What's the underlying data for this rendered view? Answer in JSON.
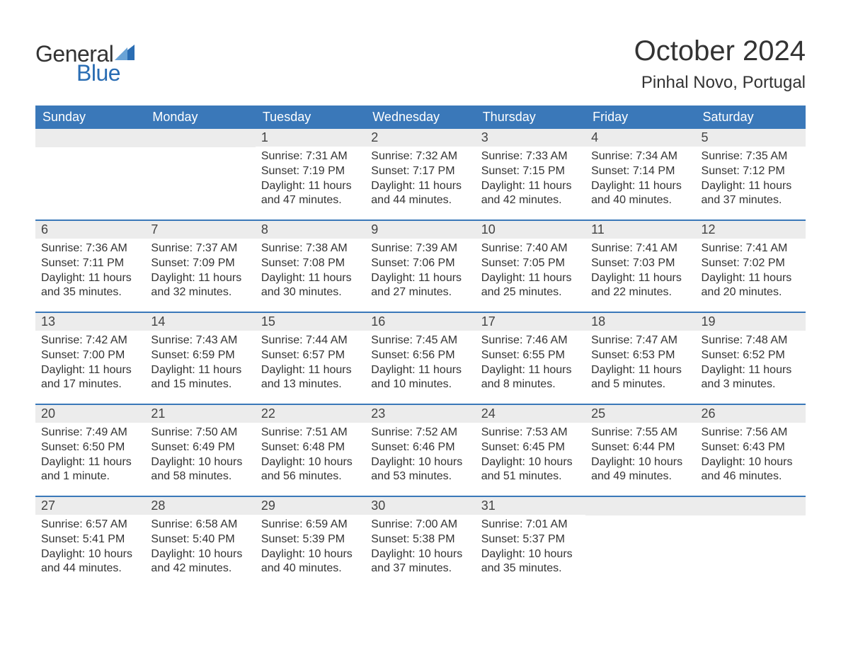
{
  "brand": {
    "word1": "General",
    "word2": "Blue",
    "accent_color": "#2a6db3"
  },
  "header": {
    "title": "October 2024",
    "location": "Pinhal Novo, Portugal"
  },
  "colors": {
    "header_bg": "#3a78b9",
    "header_text": "#ffffff",
    "daynum_bg": "#ececec",
    "text": "#333333",
    "rule": "#3a78b9"
  },
  "weekdays": [
    "Sunday",
    "Monday",
    "Tuesday",
    "Wednesday",
    "Thursday",
    "Friday",
    "Saturday"
  ],
  "weeks": [
    [
      null,
      null,
      {
        "n": "1",
        "sunrise": "Sunrise: 7:31 AM",
        "sunset": "Sunset: 7:19 PM",
        "dl": "Daylight: 11 hours and 47 minutes."
      },
      {
        "n": "2",
        "sunrise": "Sunrise: 7:32 AM",
        "sunset": "Sunset: 7:17 PM",
        "dl": "Daylight: 11 hours and 44 minutes."
      },
      {
        "n": "3",
        "sunrise": "Sunrise: 7:33 AM",
        "sunset": "Sunset: 7:15 PM",
        "dl": "Daylight: 11 hours and 42 minutes."
      },
      {
        "n": "4",
        "sunrise": "Sunrise: 7:34 AM",
        "sunset": "Sunset: 7:14 PM",
        "dl": "Daylight: 11 hours and 40 minutes."
      },
      {
        "n": "5",
        "sunrise": "Sunrise: 7:35 AM",
        "sunset": "Sunset: 7:12 PM",
        "dl": "Daylight: 11 hours and 37 minutes."
      }
    ],
    [
      {
        "n": "6",
        "sunrise": "Sunrise: 7:36 AM",
        "sunset": "Sunset: 7:11 PM",
        "dl": "Daylight: 11 hours and 35 minutes."
      },
      {
        "n": "7",
        "sunrise": "Sunrise: 7:37 AM",
        "sunset": "Sunset: 7:09 PM",
        "dl": "Daylight: 11 hours and 32 minutes."
      },
      {
        "n": "8",
        "sunrise": "Sunrise: 7:38 AM",
        "sunset": "Sunset: 7:08 PM",
        "dl": "Daylight: 11 hours and 30 minutes."
      },
      {
        "n": "9",
        "sunrise": "Sunrise: 7:39 AM",
        "sunset": "Sunset: 7:06 PM",
        "dl": "Daylight: 11 hours and 27 minutes."
      },
      {
        "n": "10",
        "sunrise": "Sunrise: 7:40 AM",
        "sunset": "Sunset: 7:05 PM",
        "dl": "Daylight: 11 hours and 25 minutes."
      },
      {
        "n": "11",
        "sunrise": "Sunrise: 7:41 AM",
        "sunset": "Sunset: 7:03 PM",
        "dl": "Daylight: 11 hours and 22 minutes."
      },
      {
        "n": "12",
        "sunrise": "Sunrise: 7:41 AM",
        "sunset": "Sunset: 7:02 PM",
        "dl": "Daylight: 11 hours and 20 minutes."
      }
    ],
    [
      {
        "n": "13",
        "sunrise": "Sunrise: 7:42 AM",
        "sunset": "Sunset: 7:00 PM",
        "dl": "Daylight: 11 hours and 17 minutes."
      },
      {
        "n": "14",
        "sunrise": "Sunrise: 7:43 AM",
        "sunset": "Sunset: 6:59 PM",
        "dl": "Daylight: 11 hours and 15 minutes."
      },
      {
        "n": "15",
        "sunrise": "Sunrise: 7:44 AM",
        "sunset": "Sunset: 6:57 PM",
        "dl": "Daylight: 11 hours and 13 minutes."
      },
      {
        "n": "16",
        "sunrise": "Sunrise: 7:45 AM",
        "sunset": "Sunset: 6:56 PM",
        "dl": "Daylight: 11 hours and 10 minutes."
      },
      {
        "n": "17",
        "sunrise": "Sunrise: 7:46 AM",
        "sunset": "Sunset: 6:55 PM",
        "dl": "Daylight: 11 hours and 8 minutes."
      },
      {
        "n": "18",
        "sunrise": "Sunrise: 7:47 AM",
        "sunset": "Sunset: 6:53 PM",
        "dl": "Daylight: 11 hours and 5 minutes."
      },
      {
        "n": "19",
        "sunrise": "Sunrise: 7:48 AM",
        "sunset": "Sunset: 6:52 PM",
        "dl": "Daylight: 11 hours and 3 minutes."
      }
    ],
    [
      {
        "n": "20",
        "sunrise": "Sunrise: 7:49 AM",
        "sunset": "Sunset: 6:50 PM",
        "dl": "Daylight: 11 hours and 1 minute."
      },
      {
        "n": "21",
        "sunrise": "Sunrise: 7:50 AM",
        "sunset": "Sunset: 6:49 PM",
        "dl": "Daylight: 10 hours and 58 minutes."
      },
      {
        "n": "22",
        "sunrise": "Sunrise: 7:51 AM",
        "sunset": "Sunset: 6:48 PM",
        "dl": "Daylight: 10 hours and 56 minutes."
      },
      {
        "n": "23",
        "sunrise": "Sunrise: 7:52 AM",
        "sunset": "Sunset: 6:46 PM",
        "dl": "Daylight: 10 hours and 53 minutes."
      },
      {
        "n": "24",
        "sunrise": "Sunrise: 7:53 AM",
        "sunset": "Sunset: 6:45 PM",
        "dl": "Daylight: 10 hours and 51 minutes."
      },
      {
        "n": "25",
        "sunrise": "Sunrise: 7:55 AM",
        "sunset": "Sunset: 6:44 PM",
        "dl": "Daylight: 10 hours and 49 minutes."
      },
      {
        "n": "26",
        "sunrise": "Sunrise: 7:56 AM",
        "sunset": "Sunset: 6:43 PM",
        "dl": "Daylight: 10 hours and 46 minutes."
      }
    ],
    [
      {
        "n": "27",
        "sunrise": "Sunrise: 6:57 AM",
        "sunset": "Sunset: 5:41 PM",
        "dl": "Daylight: 10 hours and 44 minutes."
      },
      {
        "n": "28",
        "sunrise": "Sunrise: 6:58 AM",
        "sunset": "Sunset: 5:40 PM",
        "dl": "Daylight: 10 hours and 42 minutes."
      },
      {
        "n": "29",
        "sunrise": "Sunrise: 6:59 AM",
        "sunset": "Sunset: 5:39 PM",
        "dl": "Daylight: 10 hours and 40 minutes."
      },
      {
        "n": "30",
        "sunrise": "Sunrise: 7:00 AM",
        "sunset": "Sunset: 5:38 PM",
        "dl": "Daylight: 10 hours and 37 minutes."
      },
      {
        "n": "31",
        "sunrise": "Sunrise: 7:01 AM",
        "sunset": "Sunset: 5:37 PM",
        "dl": "Daylight: 10 hours and 35 minutes."
      },
      null,
      null
    ]
  ]
}
